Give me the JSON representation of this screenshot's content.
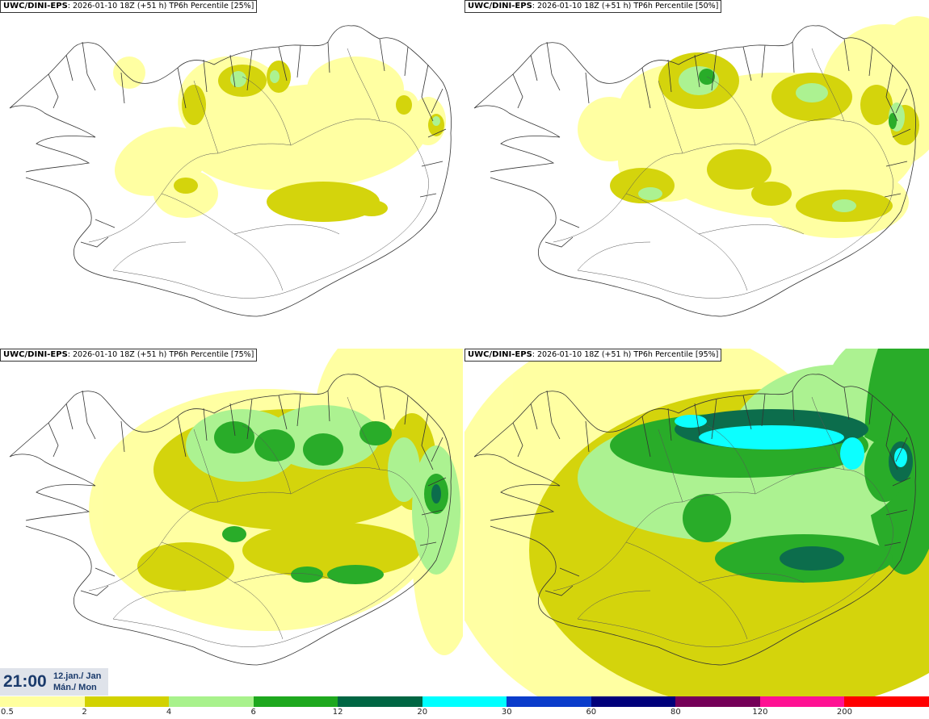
{
  "panels": [
    {
      "model": "UWC/DINI-EPS",
      "info": ": 2026-01-10 18Z (+51 h) TP6h Percentile [25%]"
    },
    {
      "model": "UWC/DINI-EPS",
      "info": ": 2026-01-10 18Z (+51 h) TP6h Percentile [50%]"
    },
    {
      "model": "UWC/DINI-EPS",
      "info": ": 2026-01-10 18Z (+51 h) TP6h Percentile [75%]"
    },
    {
      "model": "UWC/DINI-EPS",
      "info": ": 2026-01-10 18Z (+51 h) TP6h Percentile [95%]"
    }
  ],
  "timestamp": {
    "time": "21:00",
    "date": "12.jan./ Jan",
    "day": "Mán./ Mon"
  },
  "legend": {
    "ticks": [
      "0.5",
      "2",
      "4",
      "6",
      "12",
      "20",
      "30",
      "60",
      "80",
      "120",
      "200"
    ],
    "colors": [
      "#ffff9e",
      "#d2d200",
      "#a8f28c",
      "#1ea81e",
      "#006643",
      "#00ffff",
      "#0a3ccb",
      "#00007a",
      "#750058",
      "#ff1193",
      "#ff0000"
    ]
  }
}
